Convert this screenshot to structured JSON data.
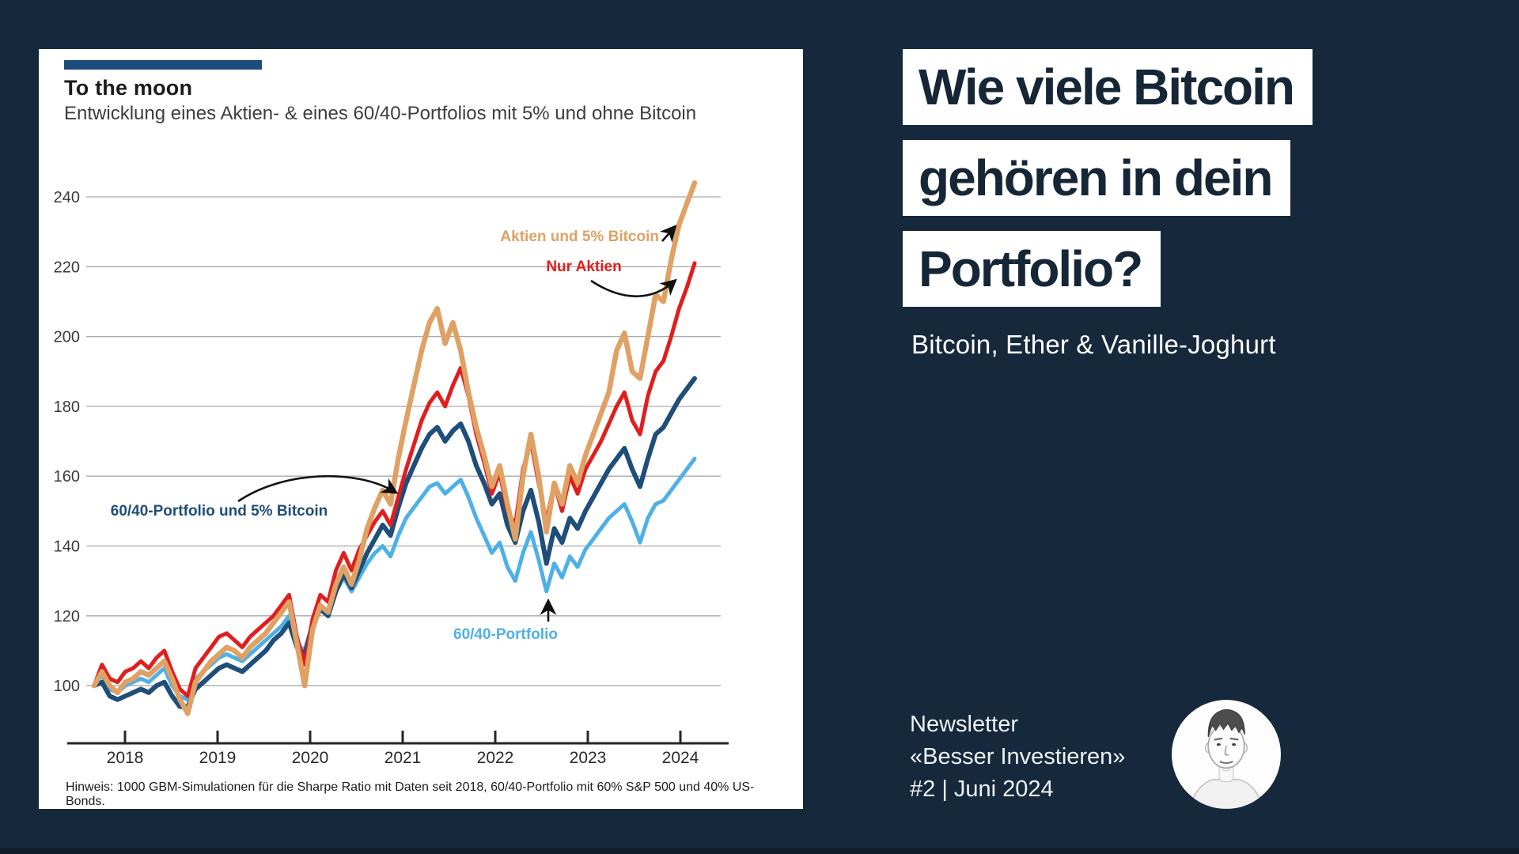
{
  "page": {
    "background_color": "#16293C"
  },
  "chart_card": {
    "accent_color": "#1D4B7C",
    "title": "To the moon",
    "subtitle": "Entwicklung eines Aktien- & eines 60/40-Portfolios mit 5% und ohne Bitcoin",
    "footnote": "Hinweis: 1000 GBM-Simulationen für die Sharpe Ratio mit Daten seit 2018, 60/40-Portfolio mit 60% S&P 500 und 40% US-Bonds."
  },
  "chart_data": {
    "type": "line",
    "title": "To the moon",
    "xlabel": "",
    "ylabel": "",
    "x_start": 2018.0,
    "x_step_years": 0.0833,
    "x_ticks": [
      "2018",
      "2019",
      "2020",
      "2021",
      "2022",
      "2023",
      "2024"
    ],
    "y_ticks": [
      240,
      220,
      200,
      180,
      160,
      140,
      120,
      100
    ],
    "ylim": [
      88,
      250
    ],
    "grid": "horizontal",
    "legend_position": "inline-annotations",
    "series": [
      {
        "name": "60/40-Portfolio",
        "color": "#4FB0E6",
        "values": [
          100,
          103,
          99,
          98,
          100,
          101,
          102,
          101,
          103,
          105,
          100,
          97,
          96,
          102,
          104,
          106,
          108,
          109,
          108,
          107,
          109,
          111,
          113,
          115,
          117,
          120,
          112,
          110,
          118,
          123,
          121,
          127,
          131,
          127,
          131,
          135,
          138,
          140,
          137,
          143,
          148,
          151,
          154,
          157,
          158,
          155,
          157,
          159,
          154,
          148,
          143,
          138,
          141,
          134,
          130,
          138,
          144,
          136,
          127,
          135,
          131,
          137,
          134,
          139,
          142,
          145,
          148,
          150,
          152,
          147,
          141,
          148,
          152,
          153,
          156,
          159,
          162,
          165
        ]
      },
      {
        "name": "60/40-Portfolio und 5% Bitcoin",
        "color": "#1E4E79",
        "values": [
          100,
          101,
          97,
          96,
          97,
          98,
          99,
          98,
          100,
          101,
          97,
          94,
          94,
          99,
          101,
          103,
          105,
          106,
          105,
          104,
          106,
          108,
          110,
          113,
          115,
          118,
          111,
          109,
          117,
          122,
          120,
          127,
          132,
          128,
          133,
          138,
          142,
          146,
          143,
          151,
          158,
          163,
          168,
          172,
          174,
          170,
          173,
          175,
          170,
          163,
          158,
          152,
          155,
          146,
          141,
          150,
          156,
          147,
          135,
          145,
          141,
          148,
          145,
          150,
          154,
          158,
          162,
          165,
          168,
          162,
          157,
          165,
          172,
          174,
          178,
          182,
          185,
          188
        ]
      },
      {
        "name": "Nur Aktien",
        "color": "#E01E1E",
        "values": [
          100,
          106,
          102,
          101,
          104,
          105,
          107,
          105,
          108,
          110,
          104,
          99,
          97,
          105,
          108,
          111,
          114,
          115,
          113,
          111,
          114,
          116,
          118,
          120,
          123,
          126,
          114,
          106,
          119,
          126,
          124,
          133,
          138,
          133,
          139,
          143,
          147,
          150,
          146,
          154,
          162,
          169,
          176,
          181,
          184,
          180,
          186,
          191,
          183,
          172,
          164,
          155,
          161,
          150,
          146,
          162,
          170,
          158,
          147,
          158,
          150,
          160,
          155,
          162,
          166,
          170,
          175,
          180,
          184,
          176,
          172,
          183,
          190,
          193,
          200,
          208,
          214,
          221
        ]
      },
      {
        "name": "Aktien und 5% Bitcoin",
        "color": "#DFA164",
        "values": [
          100,
          104,
          100,
          98,
          101,
          102,
          104,
          103,
          105,
          107,
          102,
          96,
          92,
          101,
          104,
          107,
          109,
          111,
          110,
          108,
          111,
          113,
          115,
          118,
          121,
          124,
          112,
          100,
          116,
          123,
          121,
          129,
          134,
          129,
          136,
          145,
          151,
          156,
          152,
          165,
          176,
          186,
          196,
          204,
          208,
          198,
          204,
          196,
          184,
          174,
          166,
          157,
          163,
          152,
          142,
          160,
          172,
          160,
          144,
          158,
          152,
          163,
          158,
          166,
          172,
          178,
          184,
          196,
          201,
          190,
          188,
          200,
          212,
          210,
          222,
          232,
          238,
          244
        ]
      }
    ],
    "annotations": [
      {
        "text": "Aktien und 5% Bitcoin",
        "color": "#DFA164"
      },
      {
        "text": "Nur Aktien",
        "color": "#E01E1E"
      },
      {
        "text": "60/40-Portfolio und 5% Bitcoin",
        "color": "#1E4E79"
      },
      {
        "text": "60/40-Portfolio",
        "color": "#4FB0E6"
      }
    ]
  },
  "headline": {
    "lines": [
      "Wie viele Bitcoin",
      "gehören in dein",
      "Portfolio?"
    ],
    "subtitle": "Bitcoin, Ether & Vanille-Joghurt"
  },
  "footer": {
    "lines": [
      "Newsletter",
      "«Besser Investieren»",
      "#2 | Juni 2024"
    ]
  },
  "avatar": {
    "description": "pencil-sketch portrait"
  }
}
